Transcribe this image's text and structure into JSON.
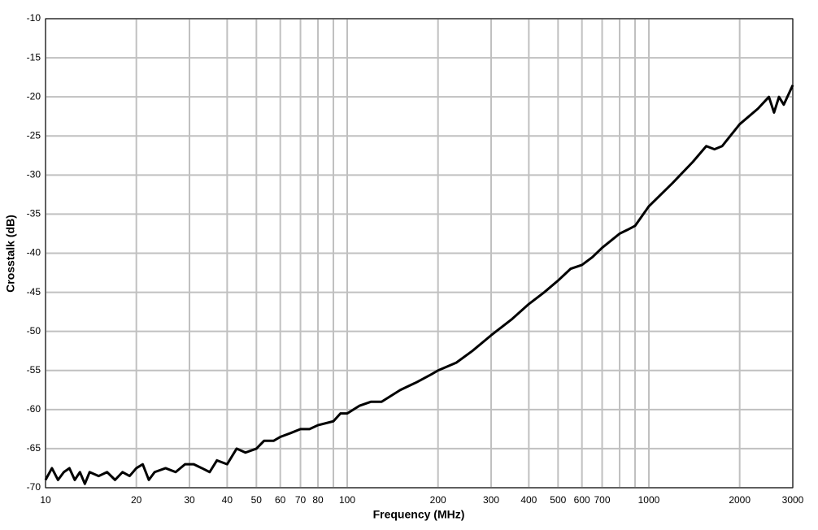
{
  "chart_data": {
    "type": "line",
    "xlabel": "Frequency (MHz)",
    "ylabel": "Crosstalk (dB)",
    "xscale": "log",
    "grid": true,
    "xlim": [
      10,
      3000
    ],
    "ylim": [
      -70,
      -10
    ],
    "xticks": [
      10,
      20,
      30,
      40,
      50,
      60,
      70,
      80,
      100,
      200,
      300,
      400,
      500,
      600,
      700,
      1000,
      2000,
      3000
    ],
    "xminorticks": [
      90,
      800,
      900
    ],
    "yticks": [
      -10,
      -15,
      -20,
      -25,
      -30,
      -35,
      -40,
      -45,
      -50,
      -55,
      -60,
      -65,
      -70
    ],
    "x": [
      10,
      10.5,
      11,
      11.5,
      12,
      12.5,
      13,
      13.5,
      14,
      15,
      16,
      17,
      18,
      19,
      20,
      21,
      22,
      23,
      25,
      27,
      29,
      31,
      33,
      35,
      37,
      40,
      43,
      46,
      50,
      53,
      57,
      60,
      65,
      70,
      75,
      80,
      90,
      95,
      100,
      110,
      120,
      130,
      150,
      170,
      190,
      200,
      230,
      260,
      300,
      350,
      400,
      450,
      500,
      550,
      600,
      650,
      700,
      800,
      850,
      900,
      1000,
      1200,
      1400,
      1550,
      1650,
      1750,
      2000,
      2300,
      2500,
      2600,
      2700,
      2800,
      3000
    ],
    "series": [
      {
        "color": "#000000",
        "values": [
          -69,
          -67.5,
          -69,
          -68,
          -67.5,
          -69,
          -68,
          -69.5,
          -68,
          -68.5,
          -68,
          -69,
          -68,
          -68.5,
          -67.5,
          -67,
          -69,
          -68,
          -67.5,
          -68,
          -67,
          -67,
          -67.5,
          -68,
          -66.5,
          -67,
          -65,
          -65.5,
          -65,
          -64,
          -64,
          -63.5,
          -63,
          -62.5,
          -62.5,
          -62,
          -61.5,
          -60.5,
          -60.5,
          -59.5,
          -59,
          -59,
          -57.5,
          -56.5,
          -55.5,
          -55,
          -54,
          -52.5,
          -50.5,
          -48.5,
          -46.5,
          -45,
          -43.5,
          -42,
          -41.5,
          -40.5,
          -39.3,
          -37.5,
          -37,
          -36.5,
          -34,
          -31,
          -28.3,
          -26.3,
          -26.7,
          -26.3,
          -23.5,
          -21.5,
          -20,
          -22,
          -20,
          -21,
          -18.5
        ]
      }
    ]
  }
}
